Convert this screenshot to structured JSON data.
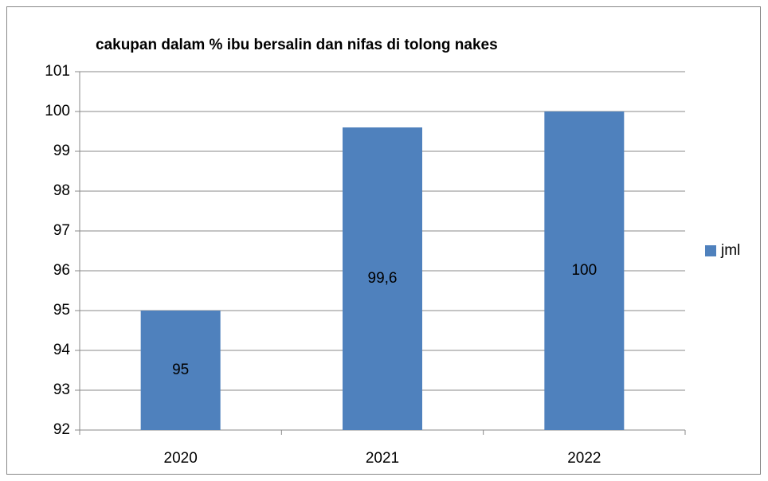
{
  "chart_data": {
    "type": "bar",
    "title": "cakupan dalam % ibu bersalin dan nifas di tolong nakes",
    "categories": [
      "2020",
      "2021",
      "2022"
    ],
    "series": [
      {
        "name": "jml",
        "color": "#4f81bd",
        "values": [
          95,
          99.6,
          100
        ],
        "value_labels": [
          "95",
          "99,6",
          "100"
        ]
      }
    ],
    "ylim": [
      92,
      101
    ],
    "yticks": [
      92,
      93,
      94,
      95,
      96,
      97,
      98,
      99,
      100,
      101
    ],
    "grid": true,
    "legend": "right"
  }
}
